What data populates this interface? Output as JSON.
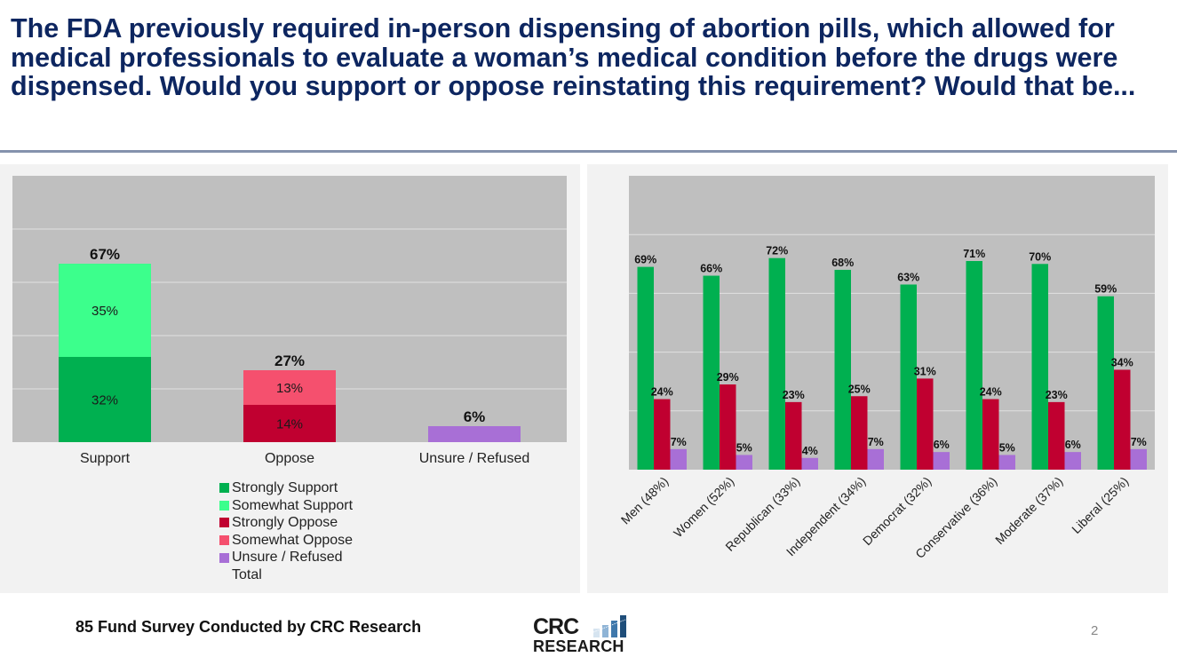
{
  "slide": {
    "title": "The FDA previously required in-person dispensing of abortion pills, which allowed for medical professionals to evaluate a woman’s medical condition before the drugs were dispensed. Would you support or oppose reinstating this requirement? Would that be...",
    "footer_source": "85 Fund Survey Conducted by CRC Research",
    "logo": {
      "line1": "CRC",
      "line2": "RESEARCH",
      "icon": "bar-chart-logo-icon"
    },
    "page_number": "2"
  },
  "colors": {
    "strongly_support": "#00b050",
    "somewhat_support": "#3cff8c",
    "strongly_oppose": "#c00030",
    "somewhat_oppose": "#f5506e",
    "unsure": "#a86fd6",
    "plot_bg": "#bfbfbf",
    "panel_bg": "#f2f2f2",
    "gridline": "#e0e0e0",
    "title": "#0d2660"
  },
  "legend": [
    {
      "label": "Strongly Support",
      "color_key": "strongly_support"
    },
    {
      "label": "Somewhat Support",
      "color_key": "somewhat_support"
    },
    {
      "label": "Strongly Oppose",
      "color_key": "strongly_oppose"
    },
    {
      "label": "Somewhat Oppose",
      "color_key": "somewhat_oppose"
    },
    {
      "label": "Unsure / Refused",
      "color_key": "unsure"
    },
    {
      "label": "Total",
      "color_key": null
    }
  ],
  "chart_data": [
    {
      "type": "bar",
      "stacked": true,
      "title": "",
      "xlabel": "",
      "ylabel": "",
      "ylim": [
        0,
        100
      ],
      "grid": true,
      "grid_step": 20,
      "legend_position": "bottom",
      "categories": [
        "Support",
        "Oppose",
        "Unsure / Refused"
      ],
      "series": [
        {
          "name": "Strongly Support",
          "color_key": "strongly_support",
          "values": [
            32,
            null,
            null
          ],
          "labels": [
            "32%",
            null,
            null
          ]
        },
        {
          "name": "Somewhat Support",
          "color_key": "somewhat_support",
          "values": [
            35,
            null,
            null
          ],
          "labels": [
            "35%",
            null,
            null
          ]
        },
        {
          "name": "Strongly Oppose",
          "color_key": "strongly_oppose",
          "values": [
            null,
            14,
            null
          ],
          "labels": [
            null,
            "14%",
            null
          ]
        },
        {
          "name": "Somewhat Oppose",
          "color_key": "somewhat_oppose",
          "values": [
            null,
            13,
            null
          ],
          "labels": [
            null,
            "13%",
            null
          ]
        },
        {
          "name": "Unsure / Refused",
          "color_key": "unsure",
          "values": [
            null,
            null,
            6
          ],
          "labels": [
            null,
            null,
            null
          ]
        }
      ],
      "totals": [
        67,
        27,
        6
      ],
      "total_labels": [
        "67%",
        "27%",
        "6%"
      ]
    },
    {
      "type": "bar",
      "stacked": false,
      "title": "",
      "xlabel": "",
      "ylabel": "",
      "ylim": [
        0,
        100
      ],
      "grid": true,
      "grid_step": 20,
      "legend_position": "none",
      "categories": [
        "Men (48%)",
        "Women (52%)",
        "Republican (33%)",
        "Independent (34%)",
        "Democrat (32%)",
        "Conservative (36%)",
        "Moderate (37%)",
        "Liberal (25%)"
      ],
      "series": [
        {
          "name": "Support",
          "color_key": "strongly_support",
          "values": [
            69,
            66,
            72,
            68,
            63,
            71,
            70,
            59
          ],
          "labels": [
            "69%",
            "66%",
            "72%",
            "68%",
            "63%",
            "71%",
            "70%",
            "59%"
          ]
        },
        {
          "name": "Oppose",
          "color_key": "strongly_oppose",
          "values": [
            24,
            29,
            23,
            25,
            31,
            24,
            23,
            34
          ],
          "labels": [
            "24%",
            "29%",
            "23%",
            "25%",
            "31%",
            "24%",
            "23%",
            "34%"
          ]
        },
        {
          "name": "Unsure / Refused",
          "color_key": "unsure",
          "values": [
            7,
            5,
            4,
            7,
            6,
            5,
            6,
            7
          ],
          "labels": [
            "7%",
            "5%",
            "4%",
            "7%",
            "6%",
            "5%",
            "6%",
            "7%"
          ]
        }
      ]
    }
  ]
}
